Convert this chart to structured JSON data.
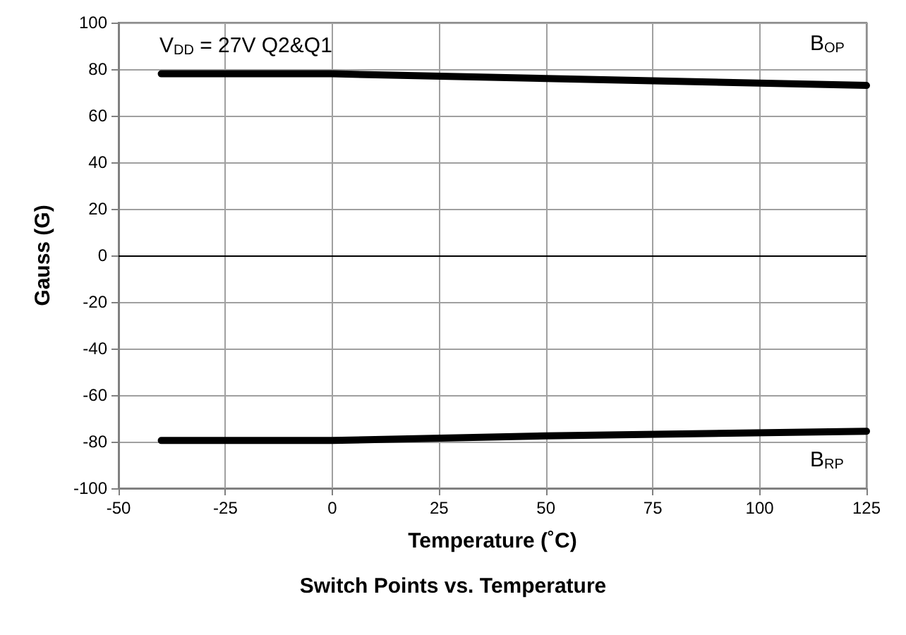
{
  "chart_data": {
    "type": "line",
    "title": "Switch Points vs. Temperature",
    "xlabel": "Temperature (˚C)",
    "ylabel": "Gauss (G)",
    "annotations": [
      "V$_{DD}$ = 27V Q2&Q1"
    ],
    "series": [
      {
        "name": "B$_{OP}$",
        "color": "#000000",
        "x": [
          -40,
          0,
          50,
          125
        ],
        "values": [
          78,
          78,
          76,
          73
        ]
      },
      {
        "name": "B$_{RP}$",
        "color": "#000000",
        "x": [
          -40,
          0,
          50,
          125
        ],
        "values": [
          -79.5,
          -79.5,
          -77.5,
          -75.5
        ]
      }
    ],
    "xlim": [
      -50,
      125
    ],
    "xticks": [
      -50,
      -25,
      0,
      25,
      50,
      75,
      100,
      125
    ],
    "ylim": [
      -100,
      100
    ],
    "yticks": [
      -100,
      -80,
      -60,
      -40,
      -20,
      0,
      20,
      40,
      60,
      80,
      100
    ],
    "ref_lines": [
      {
        "axis": "y",
        "value": 0,
        "color": "#000000"
      }
    ],
    "grid": true,
    "legend": false,
    "marker": "none",
    "line_style": "solid"
  }
}
